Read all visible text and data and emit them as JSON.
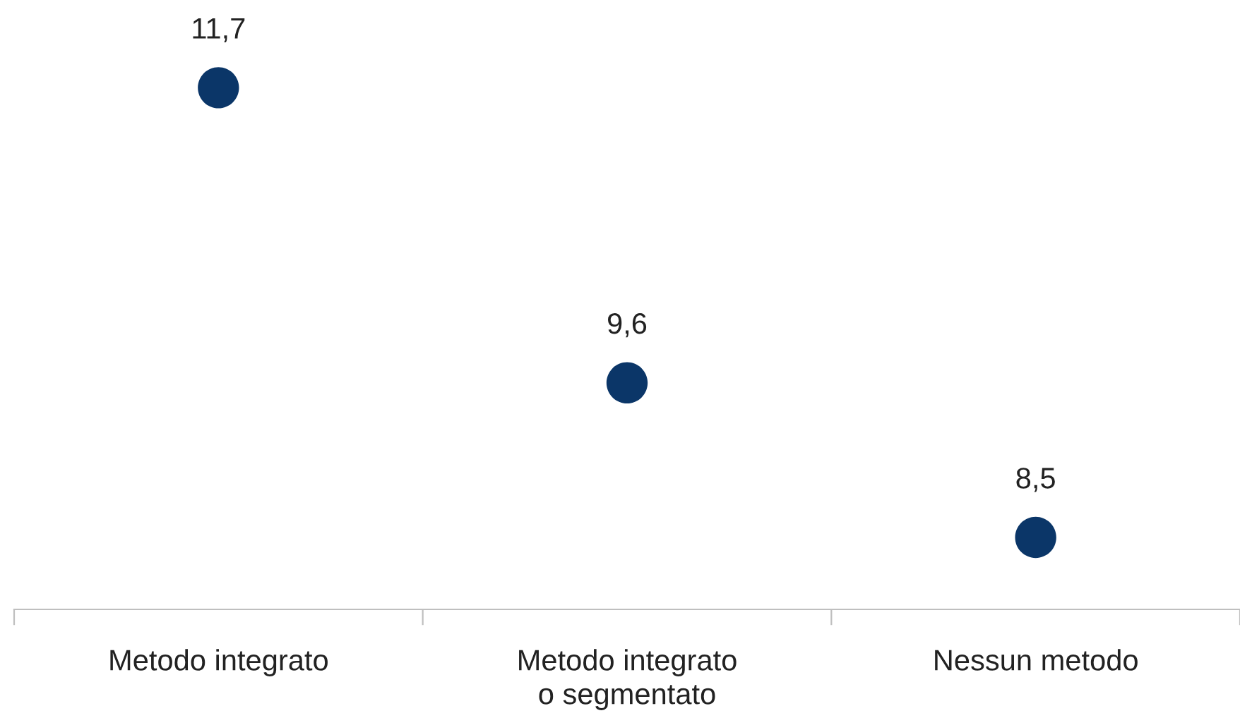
{
  "chart_data": {
    "type": "scatter",
    "categories": [
      "Metodo integrato",
      "Metodo integrato o segmentato",
      "Nessun metodo"
    ],
    "values": [
      11.7,
      9.6,
      8.5
    ],
    "value_labels": [
      "11,7",
      "9,6",
      "8,5"
    ],
    "color": "#0b3668",
    "marker": "circle",
    "grid": false,
    "tick_labels": "x"
  }
}
